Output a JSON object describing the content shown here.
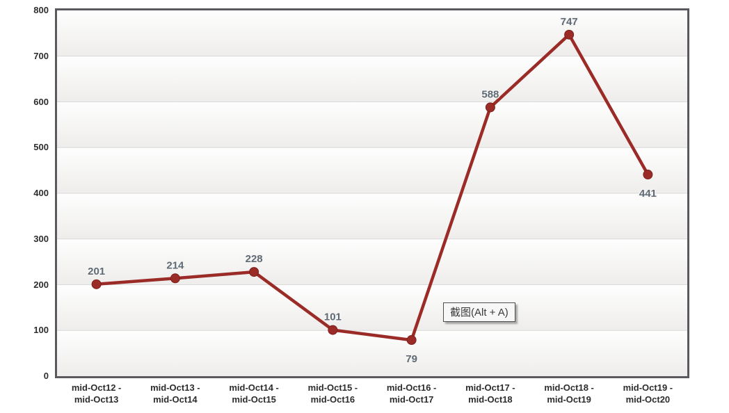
{
  "tooltip": {
    "label": "截图(Alt + A)"
  },
  "chart_data": {
    "type": "line",
    "title": "",
    "xlabel": "",
    "ylabel": "",
    "categories": [
      "mid-Oct12 -\nmid-Oct13",
      "mid-Oct13 -\nmid-Oct14",
      "mid-Oct14 -\nmid-Oct15",
      "mid-Oct15 -\nmid-Oct16",
      "mid-Oct16 -\nmid-Oct17",
      "mid-Oct17 -\nmid-Oct18",
      "mid-Oct18 -\nmid-Oct19",
      "mid-Oct19 -\nmid-Oct20"
    ],
    "values": [
      201,
      214,
      228,
      101,
      79,
      588,
      747,
      441
    ],
    "value_label_positions": [
      "above",
      "above",
      "above",
      "above",
      "below",
      "above",
      "above",
      "below"
    ],
    "ylim": [
      0,
      800
    ],
    "yticks": [
      0,
      100,
      200,
      300,
      400,
      500,
      600,
      700,
      800
    ],
    "grid": "horizontal",
    "legend": "none",
    "marker": "circle",
    "colors": {
      "line": "#9a2b27",
      "marker": "#9a2b27",
      "marker_stroke": "#7d1f1c",
      "grid": "#d9d9d9",
      "grid_highlight": "#ffffff",
      "band_top": "#fefefe",
      "band_bottom": "#eeedeb",
      "axis_border": "#5a5a5e",
      "value_label": "#5e6b76",
      "value_label_halo": "#f5f4f2",
      "axis_label": "#2d2d2d"
    }
  }
}
